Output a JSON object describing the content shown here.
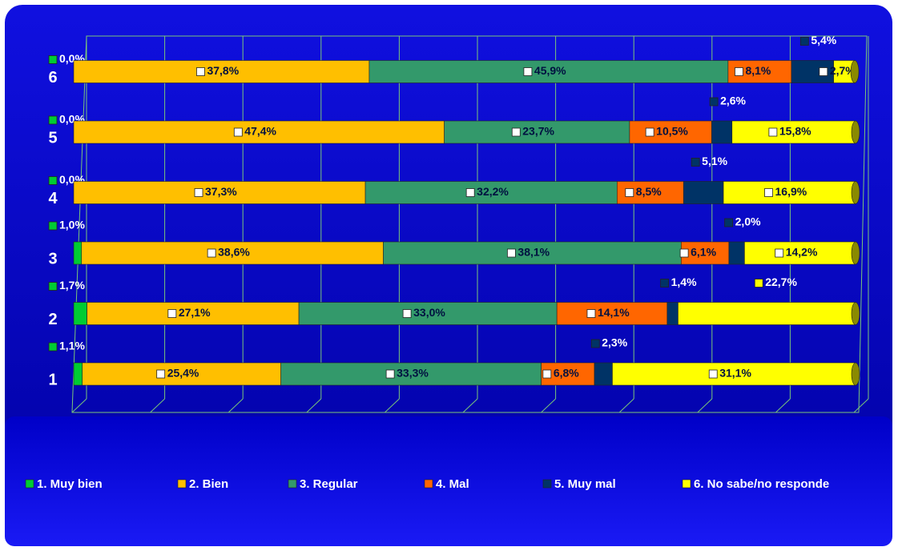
{
  "chart_data": {
    "type": "stacked_bar_horizontal",
    "categories": [
      "1",
      "2",
      "3",
      "4",
      "5",
      "6"
    ],
    "series": [
      {
        "name": "1. Muy bien",
        "color": "#00cc33",
        "values": [
          1.1,
          1.7,
          1.0,
          0,
          0,
          0
        ],
        "value_labels": [
          "1,1%",
          "1,7%",
          "1,0%",
          "0,0%",
          "0,0%",
          "0,0%"
        ]
      },
      {
        "name": "2. Bien",
        "color": "#ffbf00",
        "values": [
          25.4,
          27.1,
          38.6,
          37.3,
          47.4,
          37.8
        ],
        "value_labels": [
          "25,4%",
          "27,1%",
          "38,6%",
          "37,3%",
          "47,4%",
          "37,8%"
        ]
      },
      {
        "name": "3. Regular",
        "color": "#33996b",
        "values": [
          33.3,
          33.0,
          38.1,
          32.2,
          23.7,
          45.9
        ],
        "value_labels": [
          "33,3%",
          "33,0%",
          "38,1%",
          "32,2%",
          "23,7%",
          "45,9%"
        ]
      },
      {
        "name": "4. Mal",
        "color": "#ff6600",
        "values": [
          6.8,
          14.1,
          6.1,
          8.5,
          10.5,
          8.1
        ],
        "value_labels": [
          "6,8%",
          "14,1%",
          "6,1%",
          "8,5%",
          "10,5%",
          "8,1%"
        ]
      },
      {
        "name": "5. Muy mal",
        "color": "#003366",
        "values": [
          2.3,
          1.4,
          2.0,
          5.1,
          2.6,
          5.4
        ],
        "value_labels": [
          "2,3%",
          "1,4%",
          "2,0%",
          "5,1%",
          "2,6%",
          "5,4%"
        ]
      },
      {
        "name": "6. No sabe/no responde",
        "color": "#ffff00",
        "values": [
          31.1,
          22.7,
          14.2,
          16.9,
          15.8,
          2.7
        ],
        "value_labels": [
          "31,1%",
          "22,7%",
          "14,2%",
          "16,9%",
          "15,8%",
          "2,7%"
        ]
      }
    ],
    "xlim": [
      0,
      100
    ],
    "xticks": [
      0,
      10,
      20,
      30,
      40,
      50,
      60,
      70,
      80,
      90,
      100
    ],
    "grid": true,
    "legend": "bottom"
  }
}
